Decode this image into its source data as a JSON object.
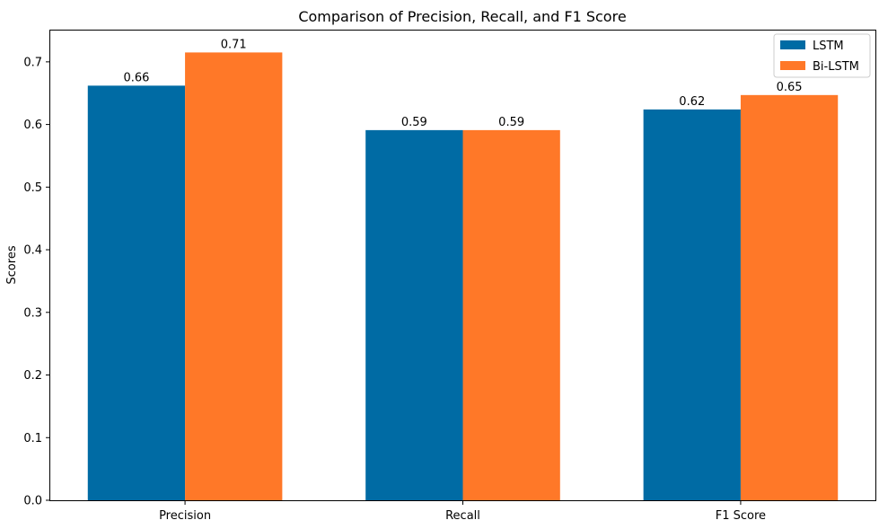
{
  "chart_data": {
    "type": "bar",
    "title": "Comparison of Precision, Recall, and F1 Score",
    "xlabel": "",
    "ylabel": "Scores",
    "categories": [
      "Precision",
      "Recall",
      "F1 Score"
    ],
    "series": [
      {
        "name": "LSTM",
        "values": [
          0.662,
          0.591,
          0.624
        ],
        "labels": [
          "0.66",
          "0.59",
          "0.62"
        ],
        "color": "#006BA4"
      },
      {
        "name": "Bi-LSTM",
        "values": [
          0.715,
          0.591,
          0.647
        ],
        "labels": [
          "0.71",
          "0.59",
          "0.65"
        ],
        "color": "#FF7828"
      }
    ],
    "ylim": [
      0,
      0.75
    ],
    "yticks": [
      0.0,
      0.1,
      0.2,
      0.3,
      0.4,
      0.5,
      0.6,
      0.7
    ],
    "ytick_labels": [
      "0.0",
      "0.1",
      "0.2",
      "0.3",
      "0.4",
      "0.5",
      "0.6",
      "0.7"
    ],
    "grid": false,
    "legend_position": "top-right"
  }
}
